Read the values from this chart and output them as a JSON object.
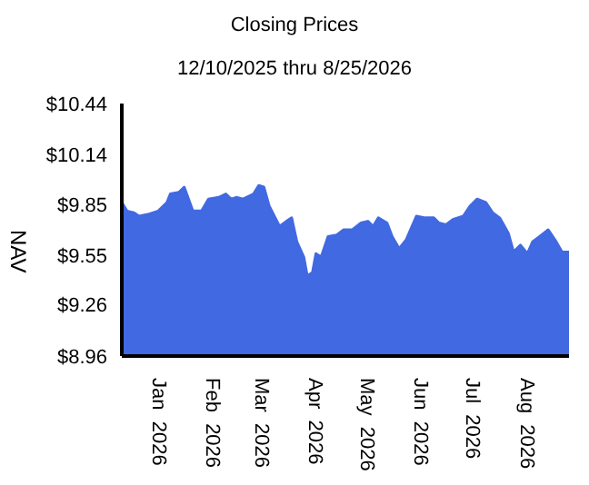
{
  "chart_data": {
    "type": "area",
    "title": "Closing Prices",
    "subtitle": "12/10/2025 thru 8/25/2026",
    "ylabel": "NAV",
    "x": [
      "2025-12-10",
      "2025-12-13",
      "2025-12-17",
      "2025-12-20",
      "2025-12-25",
      "2025-12-31",
      "2026-01-05",
      "2026-01-07",
      "2026-01-12",
      "2026-01-15",
      "2026-01-20",
      "2026-01-25",
      "2026-01-29",
      "2026-02-04",
      "2026-02-08",
      "2026-02-11",
      "2026-02-14",
      "2026-02-18",
      "2026-02-24",
      "2026-02-27",
      "2026-03-02",
      "2026-03-05",
      "2026-03-11",
      "2026-03-15",
      "2026-03-18",
      "2026-03-21",
      "2026-03-25",
      "2026-03-27",
      "2026-03-30",
      "2026-04-01",
      "2026-04-04",
      "2026-04-08",
      "2026-04-13",
      "2026-04-17",
      "2026-04-22",
      "2026-04-27",
      "2026-05-01",
      "2026-05-04",
      "2026-05-07",
      "2026-05-12",
      "2026-05-15",
      "2026-05-19",
      "2026-05-23",
      "2026-05-29",
      "2026-06-03",
      "2026-06-08",
      "2026-06-11",
      "2026-06-15",
      "2026-06-19",
      "2026-06-25",
      "2026-06-29",
      "2026-07-03",
      "2026-07-08",
      "2026-07-12",
      "2026-07-16",
      "2026-07-21",
      "2026-07-24",
      "2026-07-28",
      "2026-08-01",
      "2026-08-04",
      "2026-08-08",
      "2026-08-13",
      "2026-08-17",
      "2026-08-21",
      "2026-08-25"
    ],
    "series": [
      {
        "color": "#4169e1",
        "values": [
          9.86,
          9.81,
          9.8,
          9.78,
          9.79,
          9.81,
          9.86,
          9.91,
          9.92,
          9.95,
          9.81,
          9.81,
          9.88,
          9.89,
          9.91,
          9.88,
          9.89,
          9.88,
          9.91,
          9.96,
          9.95,
          9.84,
          9.72,
          9.75,
          9.77,
          9.63,
          9.54,
          9.43,
          9.45,
          9.56,
          9.54,
          9.66,
          9.67,
          9.7,
          9.7,
          9.74,
          9.75,
          9.72,
          9.77,
          9.74,
          9.66,
          9.59,
          9.64,
          9.78,
          9.77,
          9.77,
          9.74,
          9.73,
          9.76,
          9.78,
          9.84,
          9.88,
          9.86,
          9.8,
          9.77,
          9.68,
          9.57,
          9.61,
          9.56,
          9.63,
          9.66,
          9.7,
          9.64,
          9.57,
          9.57
        ]
      }
    ],
    "xlim": [
      "2025-12-10",
      "2026-08-25"
    ],
    "xticks": [
      {
        "value": "2026-01-01",
        "label": "Jan 2026"
      },
      {
        "value": "2026-02-01",
        "label": "Feb 2026"
      },
      {
        "value": "2026-03-01",
        "label": "Mar 2026"
      },
      {
        "value": "2026-04-01",
        "label": "Apr 2026"
      },
      {
        "value": "2026-05-01",
        "label": "May 2026"
      },
      {
        "value": "2026-06-01",
        "label": "Jun 2026"
      },
      {
        "value": "2026-07-01",
        "label": "Jul 2026"
      },
      {
        "value": "2026-08-01",
        "label": "Aug 2026"
      }
    ],
    "ylim": [
      8.96,
      10.44
    ],
    "yticks": [
      {
        "value": 8.96,
        "label": "$8.96"
      },
      {
        "value": 9.26,
        "label": "$9.26"
      },
      {
        "value": 9.55,
        "label": "$9.55"
      },
      {
        "value": 9.85,
        "label": "$9.85"
      },
      {
        "value": 10.14,
        "label": "$10.14"
      },
      {
        "value": 10.44,
        "label": "$10.44"
      }
    ],
    "grid": false,
    "legend": false
  }
}
